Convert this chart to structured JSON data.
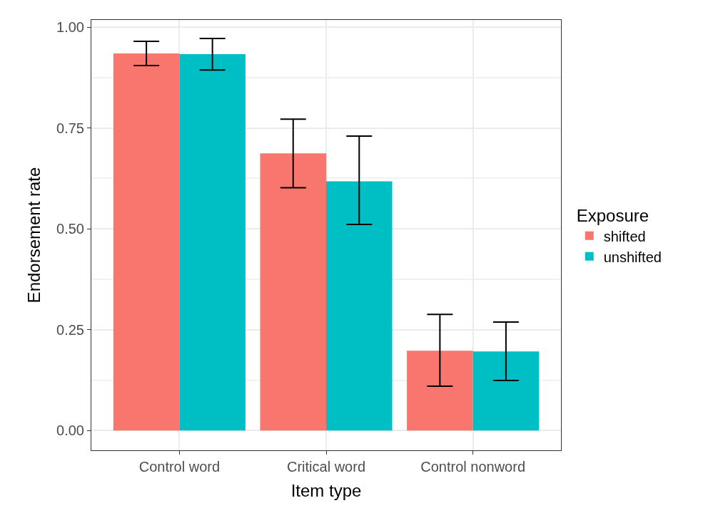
{
  "chart_data": {
    "type": "bar",
    "xlabel": "Item type",
    "ylabel": "Endorsement rate",
    "legend_title": "Exposure",
    "categories": [
      "Control word",
      "Critical word",
      "Control nonword"
    ],
    "series": [
      {
        "name": "shifted",
        "color": "#f8766d",
        "values": [
          0.935,
          0.687,
          0.198
        ],
        "errors": [
          [
            0.905,
            0.965
          ],
          [
            0.602,
            0.772
          ],
          [
            0.11,
            0.288
          ]
        ]
      },
      {
        "name": "unshifted",
        "color": "#00bfc4",
        "values": [
          0.933,
          0.618,
          0.196
        ],
        "errors": [
          [
            0.894,
            0.972
          ],
          [
            0.511,
            0.73
          ],
          [
            0.124,
            0.269
          ]
        ]
      }
    ],
    "ylim": [
      -0.049,
      1.018
    ],
    "yticks": [
      {
        "value": 0,
        "label": "0.00"
      },
      {
        "value": 0.25,
        "label": "0.25"
      },
      {
        "value": 0.5,
        "label": "0.50"
      },
      {
        "value": 0.75,
        "label": "0.75"
      },
      {
        "value": 1,
        "label": "1.00"
      }
    ],
    "grid": true,
    "legend": "right"
  }
}
